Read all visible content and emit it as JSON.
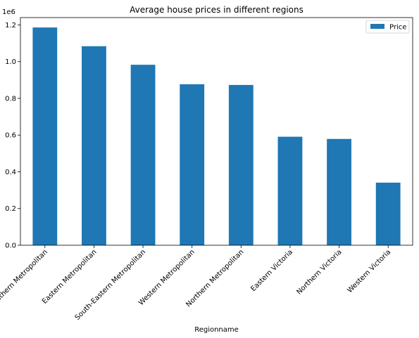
{
  "chart_data": {
    "type": "bar",
    "title": "Average house prices in different regions",
    "xlabel": "Regionname",
    "ylabel": "",
    "y_scale_label": "1e6",
    "categories": [
      "Southern Metropolitan",
      "Eastern Metropolitan",
      "South-Eastern Metropolitan",
      "Western Metropolitan",
      "Northern Metropolitan",
      "Eastern Victoria",
      "Northern Victoria",
      "Western Victoria"
    ],
    "series": [
      {
        "name": "Price",
        "color": "#1f77b4",
        "values": [
          1186000,
          1084000,
          983000,
          877000,
          873000,
          591000,
          579000,
          341000
        ]
      }
    ],
    "ylim": [
      0,
      1240000
    ],
    "yticks": [
      0,
      200000,
      400000,
      600000,
      800000,
      1000000,
      1200000
    ],
    "ytick_labels": [
      "0.0",
      "0.2",
      "0.4",
      "0.6",
      "0.8",
      "1.0",
      "1.2"
    ],
    "grid": false,
    "legend_position": "top-right"
  }
}
